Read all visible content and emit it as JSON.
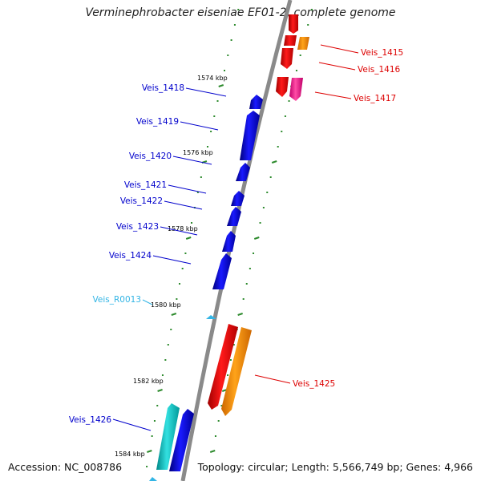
{
  "title": "Verminephrobacter eiseniae EF01-2, complete genome",
  "footer": {
    "accession": "Accession: NC_008786",
    "summary": "Topology: circular; Length: 5,566,749 bp; Genes: 4,966"
  },
  "colors": {
    "backbone": "#8a8a8a",
    "tick": "#2e8b2e",
    "forward": "#e00000",
    "forward_alt": "#ff8c00",
    "forward_pink": "#ff3399",
    "reverse": "#0000dd",
    "reverse_alt": "#00c8c8",
    "rna": "#33b5e5"
  },
  "kbp_labels": [
    "1574 kbp",
    "1576 kbp",
    "1578 kbp",
    "1580 kbp",
    "1582 kbp",
    "1584 kbp"
  ],
  "genes": {
    "left": [
      "Veis_1418",
      "Veis_1419",
      "Veis_1420",
      "Veis_1421",
      "Veis_1422",
      "Veis_1423",
      "Veis_1424",
      "Veis_R0013",
      "Veis_1426"
    ],
    "right": [
      "Veis_1415",
      "Veis_1416",
      "Veis_1417",
      "Veis_1425"
    ]
  }
}
